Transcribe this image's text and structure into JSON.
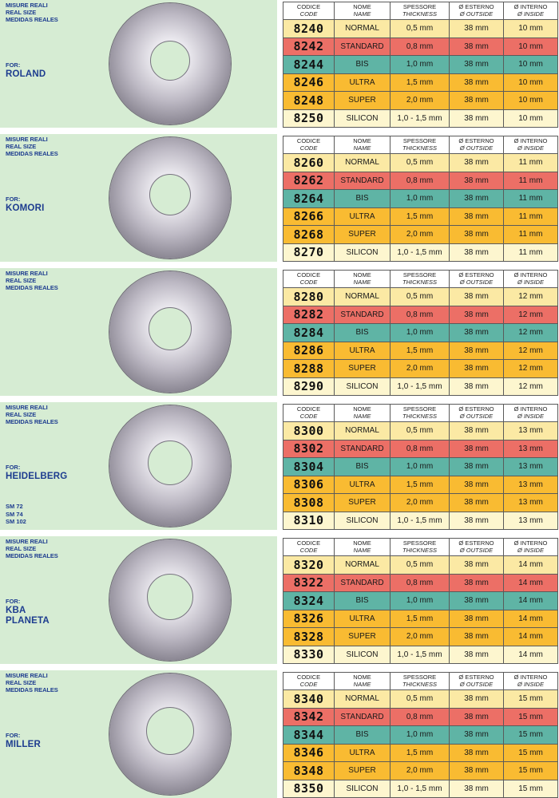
{
  "headers": {
    "code_it": "CODICE",
    "code_en": "CODE",
    "name_it": "NOME",
    "name_en": "NAME",
    "thick_it": "SPESSORE",
    "thick_en": "THICKNESS",
    "out_it": "Ø ESTERNO",
    "out_en": "Ø OUTSIDE",
    "in_it": "Ø INTERNO",
    "in_en": "Ø INSIDE"
  },
  "size_label": [
    "MISURE REALI",
    "REAL SIZE",
    "MEDIDAS REALES"
  ],
  "for_label": "FOR:",
  "types": [
    {
      "name": "NORMAL",
      "thickness": "0,5 mm"
    },
    {
      "name": "STANDARD",
      "thickness": "0,8 mm"
    },
    {
      "name": "BIS",
      "thickness": "1,0 mm"
    },
    {
      "name": "ULTRA",
      "thickness": "1,5 mm"
    },
    {
      "name": "SUPER",
      "thickness": "2,0 mm"
    },
    {
      "name": "SILICON",
      "thickness": "1,0 - 1,5 mm"
    }
  ],
  "row_colors": [
    "#fbe9a4",
    "#ec6f66",
    "#5fb4a5",
    "#f9bb32",
    "#f9bb32",
    "#fdf6cf"
  ],
  "sections": [
    {
      "brand": [
        "ROLAND"
      ],
      "models": [],
      "outside": "38 mm",
      "inside": "10 mm",
      "codes": [
        "8240",
        "8242",
        "8244",
        "8246",
        "8248",
        "8250"
      ]
    },
    {
      "brand": [
        "KOMORI"
      ],
      "models": [],
      "outside": "38 mm",
      "inside": "11 mm",
      "codes": [
        "8260",
        "8262",
        "8264",
        "8266",
        "8268",
        "8270"
      ]
    },
    {
      "brand": [],
      "models": [],
      "outside": "38 mm",
      "inside": "12 mm",
      "codes": [
        "8280",
        "8282",
        "8284",
        "8286",
        "8288",
        "8290"
      ]
    },
    {
      "brand": [
        "HEIDELBERG"
      ],
      "models": [
        "SM 72",
        "SM 74",
        "SM 102"
      ],
      "outside": "38 mm",
      "inside": "13 mm",
      "codes": [
        "8300",
        "8302",
        "8304",
        "8306",
        "8308",
        "8310"
      ]
    },
    {
      "brand": [
        "KBA",
        "PLANETA"
      ],
      "models": [],
      "outside": "38 mm",
      "inside": "14 mm",
      "codes": [
        "8320",
        "8322",
        "8324",
        "8326",
        "8328",
        "8330"
      ]
    },
    {
      "brand": [
        "MILLER"
      ],
      "models": [],
      "outside": "38 mm",
      "inside": "15 mm",
      "codes": [
        "8340",
        "8342",
        "8344",
        "8346",
        "8348",
        "8350"
      ]
    }
  ]
}
